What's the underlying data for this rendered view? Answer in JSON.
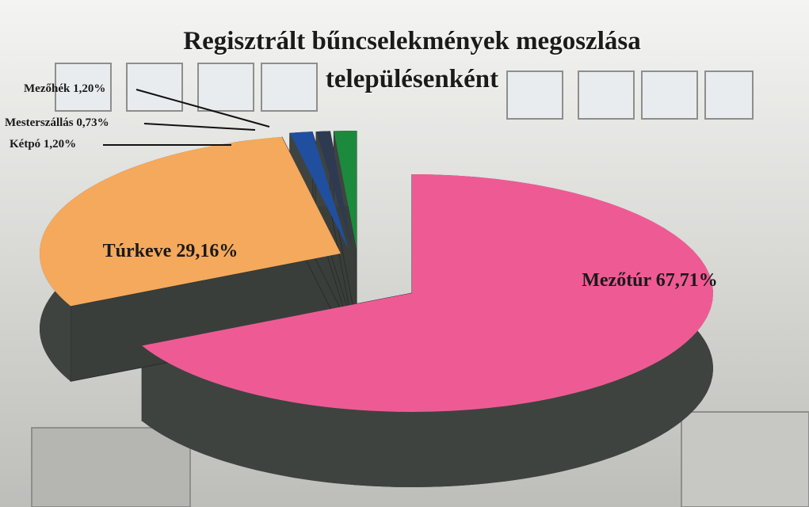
{
  "chart_data": {
    "type": "pie",
    "title": "Regisztrált bűncselekmények megoszlása településenként",
    "categories": [
      "Mezőtúr",
      "Túrkeve",
      "Kétpó",
      "Mesterszállás",
      "Mezőhék"
    ],
    "values": [
      67.71,
      29.16,
      1.2,
      0.73,
      1.2
    ],
    "value_labels": [
      "67,71%",
      "29,16%",
      "1,20%",
      "0,73%",
      "1,20%"
    ],
    "colors": [
      "#ee5b94",
      "#f5a95c",
      "#1f4f9e",
      "#2d3a52",
      "#1b8a3c"
    ]
  }
}
